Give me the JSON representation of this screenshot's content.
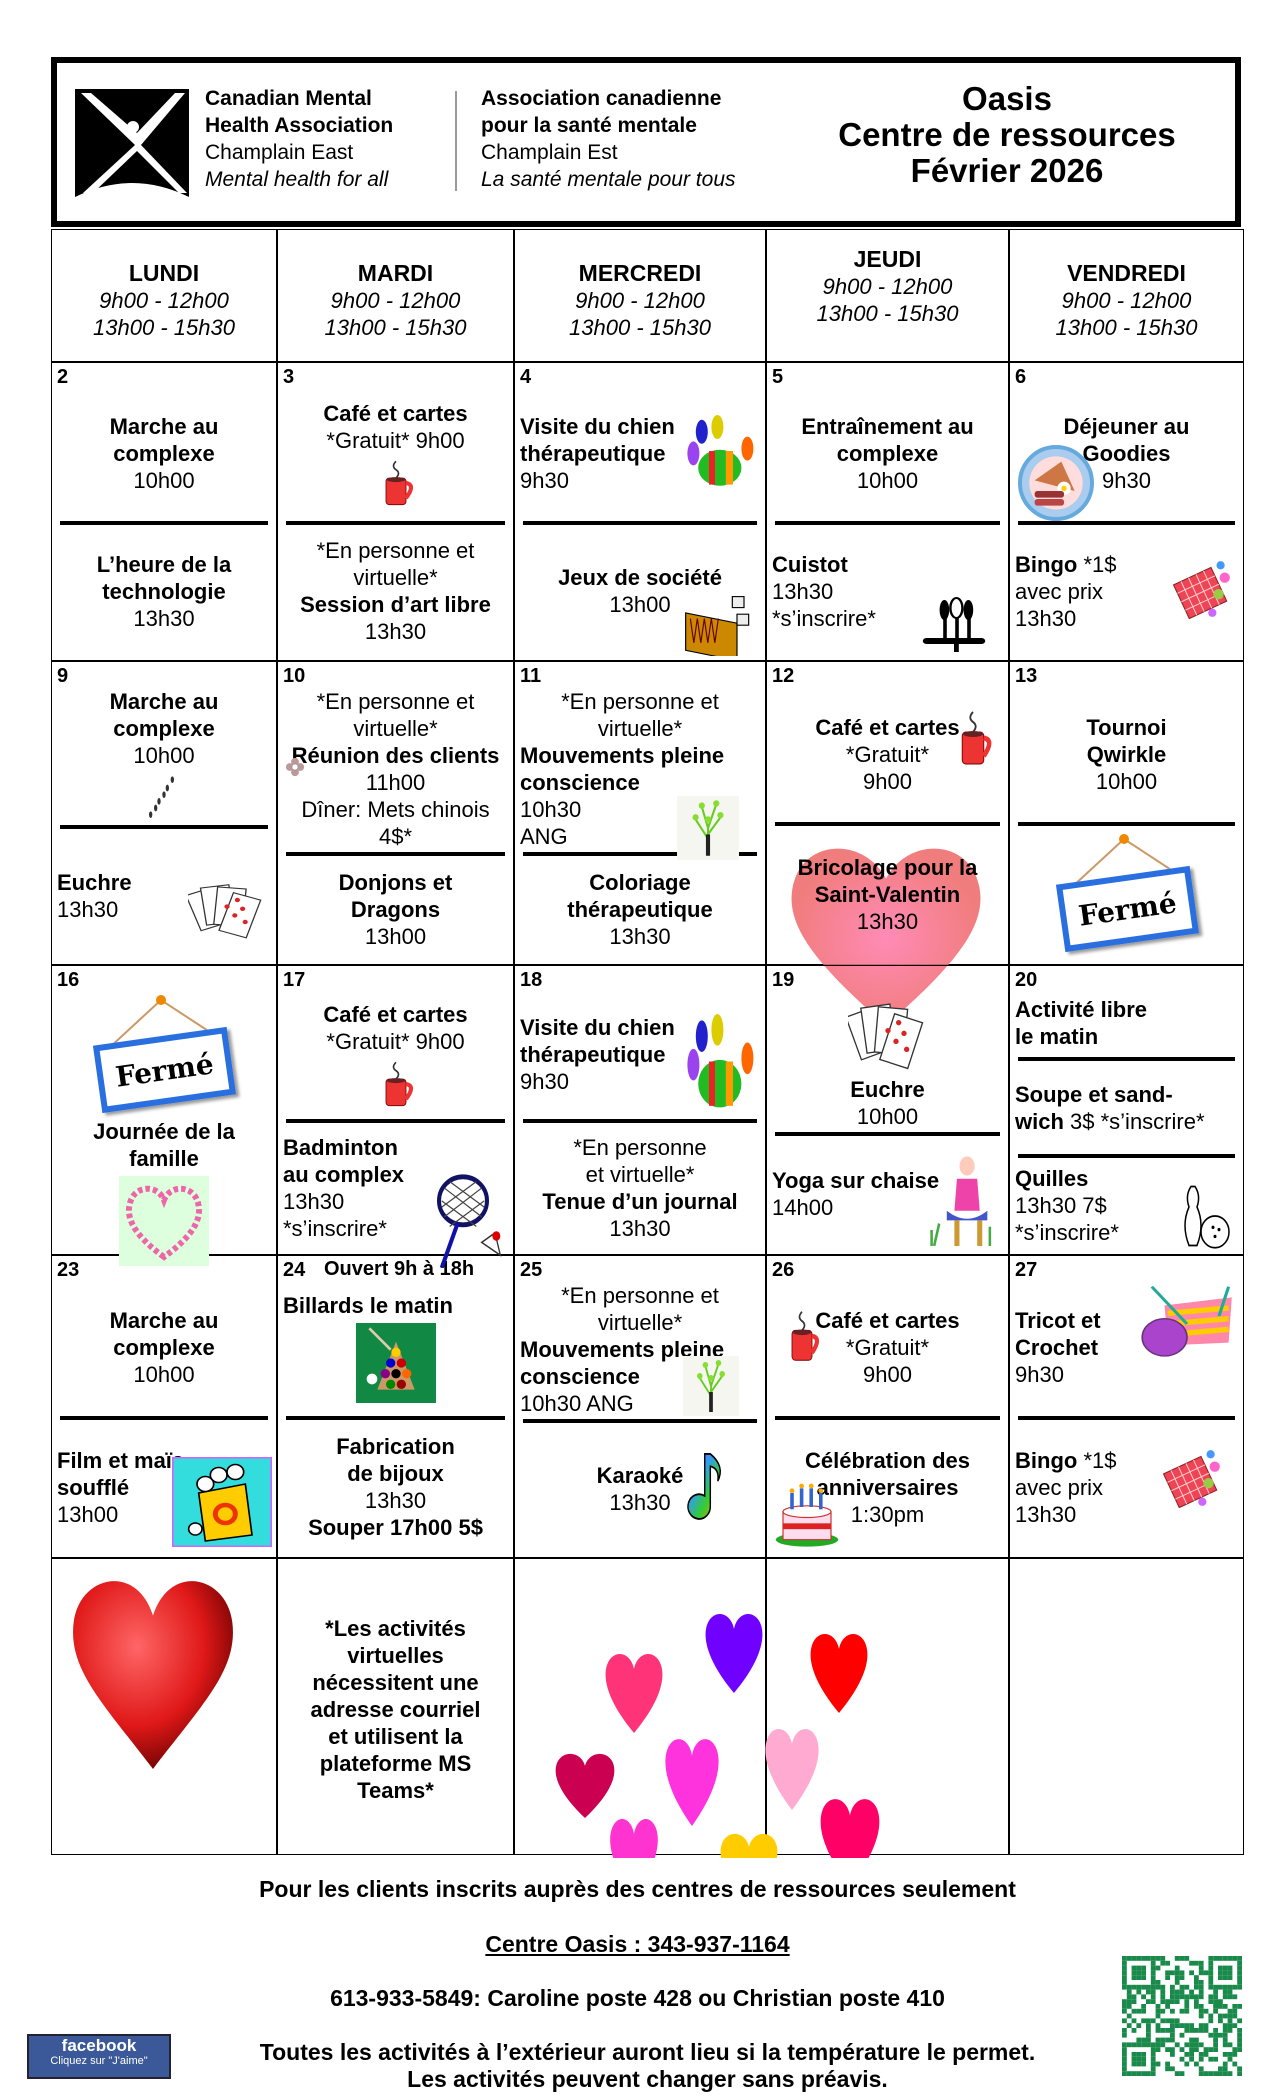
{
  "header": {
    "org_en": [
      "Canadian Mental",
      "Health Association",
      "Champlain East",
      "Mental health for all"
    ],
    "org_fr": [
      "Association canadienne",
      "pour la santé mentale",
      "Champlain Est",
      "La santé mentale pour tous"
    ],
    "title": [
      "Oasis",
      "Centre de ressources",
      "Février 2026"
    ]
  },
  "weekdays": [
    {
      "name": "LUNDI",
      "hours": [
        "9h00 - 12h00",
        "13h00 - 15h30"
      ]
    },
    {
      "name": "MARDI",
      "hours": [
        "9h00 - 12h00",
        "13h00 - 15h30"
      ]
    },
    {
      "name": "MERCREDI",
      "hours": [
        "9h00 - 12h00",
        "13h00 - 15h30"
      ]
    },
    {
      "name": "JEUDI",
      "hours": [
        "9h00 - 12h00",
        "13h00 - 15h30"
      ]
    },
    {
      "name": "VENDREDI",
      "hours": [
        "9h00 - 12h00",
        "13h00 - 15h30"
      ]
    }
  ],
  "cells": [
    {
      "day": "2",
      "sections": [
        {
          "align": "c",
          "lines": [
            {
              "t": "Marche au",
              "b": 1
            },
            {
              "t": "complexe",
              "b": 1
            },
            {
              "t": "10h00"
            }
          ]
        },
        {
          "align": "c",
          "lines": [
            {
              "t": "L’heure de la",
              "b": 1
            },
            {
              "t": "technologie",
              "b": 1
            },
            {
              "t": "13h30"
            }
          ]
        }
      ]
    },
    {
      "day": "3",
      "sections": [
        {
          "align": "c",
          "lines": [
            {
              "t": "Café et cartes",
              "b": 1
            },
            {
              "t": "*Gratuit* 9h00"
            }
          ],
          "icon": "mug-icon"
        },
        {
          "align": "c",
          "lines": [
            {
              "t": "*En personne et"
            },
            {
              "t": "virtuelle*"
            },
            {
              "t": "Session d’art libre",
              "b": 1
            },
            {
              "t": "13h30"
            }
          ]
        }
      ]
    },
    {
      "day": "4",
      "sections": [
        {
          "align": "l",
          "lines": [
            {
              "t": "Visite du chien",
              "b": 1
            },
            {
              "t": "thérapeutique",
              "b": 1
            },
            {
              "t": "9h30"
            }
          ],
          "icon": "paw-icon"
        },
        {
          "align": "c",
          "lines": [
            {
              "t": "Jeux de société",
              "b": 1
            },
            {
              "t": "13h00"
            }
          ],
          "icon": "board-game-icon"
        }
      ]
    },
    {
      "day": "5",
      "sections": [
        {
          "align": "c",
          "lines": [
            {
              "t": "Entraînement au",
              "b": 1
            },
            {
              "t": "complexe",
              "b": 1
            },
            {
              "t": "10h00"
            }
          ]
        },
        {
          "align": "l",
          "lines": [
            {
              "t": "Cuistot",
              "b": 1
            },
            {
              "t": "13h30"
            },
            {
              "t": "*s’inscrire*"
            }
          ],
          "icon": "utensils-icon"
        }
      ]
    },
    {
      "day": "6",
      "sections": [
        {
          "align": "c",
          "lines": [
            {
              "t": "Déjeuner au",
              "b": 1
            },
            {
              "t": "Goodies",
              "b": 1
            },
            {
              "t": "9h30"
            }
          ],
          "icon": "breakfast-icon"
        },
        {
          "align": "l",
          "lines": [
            {
              "t": "Bingo",
              "b": 1,
              "s": " *1$"
            },
            {
              "t": "avec prix"
            },
            {
              "t": "13h30"
            }
          ],
          "icon": "bingo-icon"
        }
      ]
    },
    {
      "day": "9",
      "sections": [
        {
          "align": "c",
          "lines": [
            {
              "t": "Marche au",
              "b": 1
            },
            {
              "t": "complexe",
              "b": 1
            },
            {
              "t": "10h00"
            }
          ],
          "icon": "footsteps-icon"
        },
        {
          "align": "l",
          "lines": [
            {
              "t": "Euchre",
              "b": 1
            },
            {
              "t": "13h30"
            }
          ],
          "icon": "playing-cards-icon"
        }
      ]
    },
    {
      "day": "10",
      "sections": [
        {
          "align": "c",
          "lines": [
            {
              "t": "*En personne et"
            },
            {
              "t": "virtuelle*"
            },
            {
              "t": "Réunion des clients",
              "b": 1
            },
            {
              "t": "11h00"
            },
            {
              "t": "Dîner: Mets chinois"
            },
            {
              "t": "4$*"
            }
          ],
          "icon": "flower-icon"
        },
        {
          "align": "c",
          "lines": [
            {
              "t": "Donjons et",
              "b": 1
            },
            {
              "t": "Dragons",
              "b": 1
            },
            {
              "t": "13h00"
            }
          ]
        }
      ]
    },
    {
      "day": "11",
      "sections": [
        {
          "align": "l",
          "lines": [
            {
              "t": "*En personne et",
              "c": 1
            },
            {
              "t": "virtuelle*",
              "c": 1
            },
            {
              "t": "Mouvements pleine",
              "b": 1
            },
            {
              "t": "conscience",
              "b": 1
            },
            {
              "t": "10h30"
            },
            {
              "t": "ANG"
            }
          ],
          "icon": "tree-icon"
        },
        {
          "align": "c",
          "lines": [
            {
              "t": "Coloriage",
              "b": 1
            },
            {
              "t": "thérapeutique",
              "b": 1
            },
            {
              "t": "13h30"
            }
          ]
        }
      ]
    },
    {
      "day": "12",
      "sections": [
        {
          "align": "c",
          "lines": [
            {
              "t": "Café et cartes",
              "b": 1
            },
            {
              "t": "*Gratuit*"
            },
            {
              "t": "9h00"
            }
          ],
          "icon": "mug-icon"
        },
        {
          "align": "c",
          "lines": [
            {
              "t": "Bricolage pour la",
              "b": 1
            },
            {
              "t": "Saint-Valentin",
              "b": 1
            },
            {
              "t": "13h30"
            }
          ],
          "icon": "valentine-heart-icon"
        }
      ]
    },
    {
      "day": "13",
      "sections": [
        {
          "align": "c",
          "lines": [
            {
              "t": "Tournoi",
              "b": 1
            },
            {
              "t": "Qwirkle",
              "b": 1
            },
            {
              "t": "10h00"
            }
          ]
        },
        {
          "align": "c",
          "sign": "Fermé",
          "lines": []
        }
      ]
    },
    {
      "day": "16",
      "sections": [
        {
          "align": "c",
          "sign": "Fermé",
          "lines": [
            {
              "t": "Journée de la",
              "b": 1
            },
            {
              "t": "famille",
              "b": 1
            }
          ],
          "icon": "family-day-heart-icon"
        }
      ]
    },
    {
      "day": "17",
      "sections": [
        {
          "align": "c",
          "lines": [
            {
              "t": "Café et cartes",
              "b": 1
            },
            {
              "t": "*Gratuit*  9h00"
            }
          ],
          "icon": "mug-icon"
        },
        {
          "align": "l",
          "lines": [
            {
              "t": "Badminton",
              "b": 1
            },
            {
              "t": "au complex",
              "b": 1
            },
            {
              "t": "13h30"
            },
            {
              "t": "*s’inscrire*"
            }
          ],
          "icon": "badminton-icon"
        }
      ]
    },
    {
      "day": "18",
      "sections": [
        {
          "align": "l",
          "lines": [
            {
              "t": "Visite du chien",
              "b": 1
            },
            {
              "t": "thérapeutique",
              "b": 1
            },
            {
              "t": "9h30"
            }
          ],
          "icon": "paw-icon"
        },
        {
          "align": "c",
          "lines": [
            {
              "t": "*En personne"
            },
            {
              "t": "et virtuelle*"
            },
            {
              "t": "Tenue d’un journal",
              "b": 1
            },
            {
              "t": "13h30"
            }
          ]
        }
      ]
    },
    {
      "day": "19",
      "sections": [
        {
          "align": "c",
          "lines": [
            {
              "t": "Euchre",
              "b": 1
            },
            {
              "t": "10h00"
            }
          ],
          "icon": "playing-cards-icon"
        },
        {
          "align": "l",
          "lines": [
            {
              "t": "Yoga sur chaise",
              "b": 1
            },
            {
              "t": "14h00"
            }
          ],
          "icon": "chair-yoga-icon"
        }
      ]
    },
    {
      "day": "20",
      "sections": [
        {
          "align": "l",
          "lines": [
            {
              "t": "Activité libre",
              "b": 1
            },
            {
              "t": "le matin",
              "b": 1
            }
          ]
        },
        {
          "align": "l",
          "lines": [
            {
              "t": "Soupe et sand-",
              "b": 1
            },
            {
              "t": "wich",
              "b": 1,
              "s": " 3$ *s’inscrire*"
            }
          ]
        },
        {
          "align": "l",
          "lines": [
            {
              "t": "Quilles",
              "b": 1
            },
            {
              "t": "13h30 7$"
            },
            {
              "t": "*s’inscrire*"
            }
          ],
          "icon": "bowling-icon"
        }
      ]
    },
    {
      "day": "23",
      "sections": [
        {
          "align": "c",
          "lines": [
            {
              "t": "Marche au",
              "b": 1
            },
            {
              "t": "complexe",
              "b": 1
            },
            {
              "t": "10h00"
            }
          ]
        },
        {
          "align": "l",
          "lines": [
            {
              "t": "Film et maïs",
              "b": 1
            },
            {
              "t": "soufflé",
              "b": 1
            },
            {
              "t": "13h00"
            }
          ],
          "icon": "popcorn-icon"
        }
      ]
    },
    {
      "day": "24",
      "note": "Ouvert 9h à 18h",
      "sections": [
        {
          "align": "l",
          "lines": [
            {
              "t": "Billards le matin",
              "b": 1
            }
          ],
          "icon": "billiards-icon"
        },
        {
          "align": "c",
          "lines": [
            {
              "t": "Fabrication",
              "b": 1
            },
            {
              "t": "de bijoux",
              "b": 1
            },
            {
              "t": "13h30"
            },
            {
              "t": "Souper 17h00 5$",
              "b": 1
            }
          ]
        }
      ]
    },
    {
      "day": "25",
      "sections": [
        {
          "align": "l",
          "lines": [
            {
              "t": "*En personne et",
              "c": 1
            },
            {
              "t": "virtuelle*",
              "c": 1
            },
            {
              "t": "Mouvements pleine",
              "b": 1
            },
            {
              "t": "conscience",
              "b": 1
            },
            {
              "t": "10h30 ANG"
            }
          ],
          "icon": "tree-icon"
        },
        {
          "align": "c",
          "lines": [
            {
              "t": "Karaoké",
              "b": 1
            },
            {
              "t": "13h30"
            }
          ],
          "icon": "music-note-icon"
        }
      ]
    },
    {
      "day": "26",
      "sections": [
        {
          "align": "c",
          "lines": [
            {
              "t": "Café et cartes",
              "b": 1
            },
            {
              "t": "*Gratuit*"
            },
            {
              "t": "9h00"
            }
          ],
          "icon": "mug-icon"
        },
        {
          "align": "c",
          "lines": [
            {
              "t": "Célébration des",
              "b": 1
            },
            {
              "t": "anniversaires",
              "b": 1
            },
            {
              "t": "1:30pm"
            }
          ],
          "icon": "birthday-cake-icon"
        }
      ]
    },
    {
      "day": "27",
      "sections": [
        {
          "align": "l",
          "lines": [
            {
              "t": "Tricot et",
              "b": 1
            },
            {
              "t": "Crochet",
              "b": 1
            },
            {
              "t": "9h30"
            }
          ],
          "icon": "yarn-icon"
        },
        {
          "align": "l",
          "lines": [
            {
              "t": "Bingo",
              "b": 1,
              "s": " *1$"
            },
            {
              "t": "avec prix"
            },
            {
              "t": "13h30"
            }
          ],
          "icon": "bingo-icon"
        }
      ]
    },
    {
      "day": "",
      "sections": [
        {
          "align": "c",
          "lines": [],
          "icon": "big-red-heart-icon"
        }
      ]
    },
    {
      "day": "",
      "sections": [
        {
          "align": "c",
          "lines": [
            {
              "t": "*Les activités",
              "b": 1
            },
            {
              "t": "virtuelles",
              "b": 1
            },
            {
              "t": "nécessitent une",
              "b": 1
            },
            {
              "t": "adresse courriel",
              "b": 1
            },
            {
              "t": "et utilisent la",
              "b": 1
            },
            {
              "t": "plateforme MS",
              "b": 1
            },
            {
              "t": "Teams*",
              "b": 1
            }
          ]
        }
      ]
    },
    {
      "day": "",
      "sections": []
    },
    {
      "day": "",
      "sections": []
    },
    {
      "day": "",
      "sections": []
    }
  ],
  "heart_colors": [
    "#ff3378",
    "#7000ff",
    "#ff0000",
    "#cc0050",
    "#ff33dd",
    "#ffaad0",
    "#ff0066",
    "#ff33d0",
    "#ffcc00"
  ],
  "footer": {
    "eligibility": "Pour les clients inscrits auprès des centres de ressources seulement",
    "centre_phone": "Centre Oasis : 343-937-1164",
    "contacts": "613-933-5849: Caroline poste 428 ou Christian poste 410",
    "weather_note": "Toutes  les activités à l’extérieur auront lieu si la température le permet.",
    "change_note": "Les activités peuvent changer sans préavis.",
    "facebook": {
      "brand": "facebook",
      "cta": "Cliquez sur \"J'aime\""
    }
  }
}
